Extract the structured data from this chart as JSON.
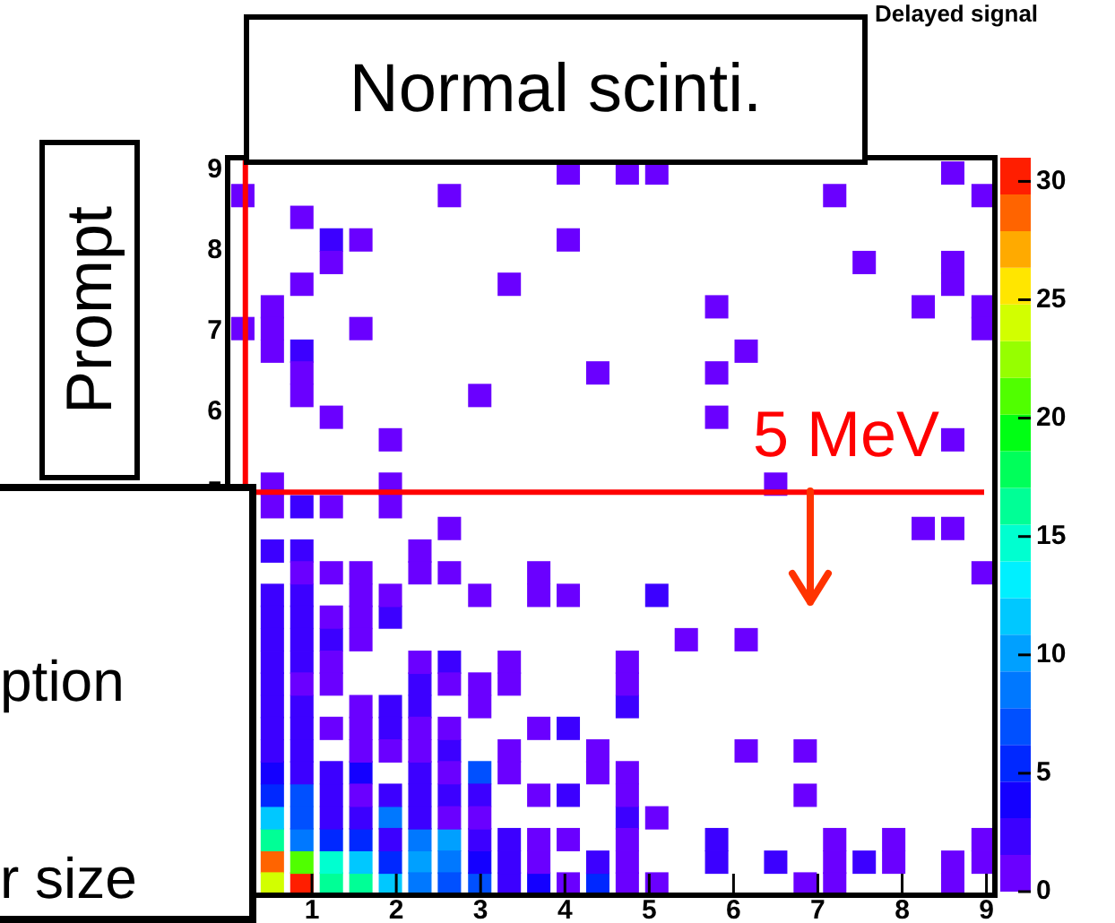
{
  "chart_data": {
    "type": "scatter",
    "title": "Delayed signal",
    "marker": "square",
    "xlim": [
      0,
      9.1
    ],
    "ylim": [
      0,
      9.15
    ],
    "xticks": [
      1,
      2,
      3,
      4,
      5,
      6,
      7,
      8,
      9
    ],
    "yticks": [
      5,
      6,
      7,
      8,
      9
    ],
    "clim": [
      0,
      31
    ],
    "cticks": [
      0,
      5,
      10,
      15,
      20,
      25,
      30
    ],
    "ref_lines": [
      {
        "axis": "y",
        "value": 5,
        "label": "5 MeV",
        "color": "#ff0000"
      },
      {
        "axis": "x",
        "value": 0.21,
        "color": "#ff0000"
      }
    ],
    "annotations": [
      "Normal scinti.",
      "Prompt",
      "ption",
      "r size"
    ],
    "series": [
      {
        "x": [
          4.04,
          4.74,
          5.09,
          8.6,
          0.18,
          2.63,
          7.2,
          8.96,
          0.88,
          1.58,
          4.04,
          1.23,
          7.55,
          8.6,
          0.88,
          3.34,
          8.6,
          0.53,
          5.8,
          8.25,
          8.96,
          0.18,
          0.53,
          1.58,
          8.96,
          0.53,
          6.15,
          0.88,
          4.39,
          5.8,
          0.88,
          2.99,
          1.23,
          5.8,
          1.93,
          8.6,
          0.53,
          1.93,
          6.5,
          0.53,
          1.23,
          1.93,
          2.63,
          8.25,
          8.6,
          2.28,
          0.88,
          1.23,
          1.58,
          2.28,
          2.63,
          3.69,
          8.96,
          1.58,
          1.93,
          2.99,
          3.69,
          4.04,
          1.23,
          1.58,
          1.58,
          5.44,
          6.15,
          1.23,
          2.28,
          3.34,
          4.74,
          0.88,
          1.23,
          2.63,
          2.99,
          3.34,
          4.74,
          1.58,
          2.99,
          1.23,
          1.58,
          2.28,
          2.63,
          3.69,
          1.58,
          1.93,
          2.28,
          3.34,
          4.39,
          6.15,
          6.85,
          2.63,
          3.34,
          4.39,
          4.74,
          1.58,
          3.69,
          4.74,
          6.85,
          2.63,
          2.99,
          5.09,
          3.69,
          4.04,
          4.74,
          7.2,
          7.9,
          8.96,
          3.69,
          4.74,
          7.2,
          7.9,
          8.6,
          8.96,
          4.04,
          4.74,
          5.09,
          6.85,
          7.2,
          8.6
        ],
        "values": [
          8.96,
          8.96,
          8.96,
          8.96,
          8.68,
          8.68,
          8.68,
          8.68,
          8.41,
          8.13,
          8.13,
          7.85,
          7.85,
          7.85,
          7.58,
          7.58,
          7.58,
          7.3,
          7.3,
          7.3,
          7.3,
          7.03,
          7.03,
          7.03,
          7.03,
          6.75,
          6.75,
          6.48,
          6.48,
          6.48,
          6.2,
          6.2,
          5.93,
          5.93,
          5.65,
          5.65,
          5.1,
          5.1,
          5.1,
          4.82,
          4.82,
          4.82,
          4.55,
          4.55,
          4.55,
          4.27,
          4,
          4,
          4,
          4,
          4,
          4,
          4,
          3.72,
          3.72,
          3.72,
          3.72,
          3.72,
          3.45,
          3.45,
          3.17,
          3.17,
          3.17,
          2.89,
          2.89,
          2.89,
          2.89,
          2.62,
          2.62,
          2.62,
          2.62,
          2.62,
          2.62,
          2.34,
          2.34,
          2.07,
          2.07,
          2.07,
          2.07,
          2.07,
          1.79,
          1.79,
          1.79,
          1.79,
          1.79,
          1.79,
          1.79,
          1.52,
          1.52,
          1.52,
          1.52,
          1.24,
          1.24,
          1.24,
          1.24,
          0.96,
          0.96,
          0.96,
          0.69,
          0.69,
          0.69,
          0.69,
          0.69,
          0.69,
          0.41,
          0.41,
          0.41,
          0.41,
          0.41,
          0.41,
          0.14,
          0.14,
          0.14,
          0.14,
          0.14,
          0.14
        ],
        "cvalues": [
          1,
          1,
          1,
          1,
          1,
          1,
          1,
          1,
          1,
          1,
          1,
          1,
          1,
          1,
          1,
          1,
          1,
          1,
          1,
          1,
          1,
          1,
          1,
          1,
          1,
          1,
          1,
          1,
          1,
          1,
          1,
          1,
          1,
          1,
          1,
          1,
          1,
          1,
          1,
          1,
          1,
          1,
          1,
          1,
          1,
          1,
          1,
          1,
          1,
          1,
          1,
          1,
          1,
          1,
          1,
          1,
          1,
          1,
          1,
          1,
          1,
          1,
          1,
          1,
          1,
          1,
          1,
          1,
          1,
          1,
          1,
          1,
          1,
          1,
          1,
          1,
          1,
          1,
          1,
          1,
          1,
          1,
          1,
          1,
          1,
          1,
          1,
          1,
          1,
          1,
          1,
          1,
          1,
          1,
          1,
          1,
          1,
          1,
          1,
          1,
          1,
          1,
          1,
          1,
          1,
          1,
          1,
          1,
          1,
          1,
          1,
          1,
          1,
          1,
          1,
          1
        ]
      },
      {
        "x": [
          1.23,
          0.88,
          0.88,
          0.53,
          0.88,
          0.53,
          0.88,
          5.09,
          0.53,
          0.88,
          1.93,
          0.53,
          0.88,
          1.23,
          0.53,
          0.88,
          2.63,
          0.53,
          2.28,
          0.88,
          1.93,
          2.28,
          4.74,
          0.53,
          0.88,
          1.93,
          4.04,
          0.53,
          2.63,
          1.23,
          2.28,
          1.93,
          2.28,
          2.63,
          2.99,
          4.04,
          2.28,
          4.74,
          5.8,
          3.34,
          4.39,
          5.8,
          6.5,
          7.55
        ],
        "values": [
          8.13,
          6.75,
          4.82,
          4.27,
          4.27,
          3.72,
          3.72,
          3.72,
          3.45,
          3.45,
          3.45,
          3.17,
          3.17,
          3.17,
          2.89,
          2.89,
          2.89,
          2.62,
          2.62,
          2.34,
          2.34,
          2.34,
          2.34,
          2.07,
          2.07,
          2.07,
          2.07,
          1.79,
          1.79,
          1.52,
          1.52,
          1.24,
          1.24,
          1.24,
          1.24,
          1.24,
          0.96,
          0.96,
          0.69,
          0.41,
          0.41,
          0.41,
          0.41,
          0.41
        ],
        "cvalues": [
          2,
          2,
          2,
          2,
          2,
          2,
          2,
          2,
          2,
          2,
          2,
          2,
          2,
          2,
          2,
          2,
          2,
          2,
          2,
          2,
          2,
          2,
          2,
          2,
          2,
          2,
          2,
          2,
          2,
          2,
          2,
          2,
          2,
          2,
          2,
          2,
          2,
          2,
          2,
          2,
          2,
          2,
          2,
          2
        ]
      },
      {
        "x": [
          0.53,
          0.88,
          0.88,
          1.23,
          1.23,
          1.58,
          1.93,
          2.99,
          3.34,
          3.34
        ],
        "values": [
          2.34,
          1.79,
          1.52,
          1.24,
          0.96,
          0.96,
          0.69,
          0.69,
          0.69,
          0.14
        ],
        "cvalues": [
          3,
          3,
          3,
          3,
          3,
          3,
          3,
          3,
          3,
          3
        ]
      },
      {
        "x": [
          0.53,
          1.58,
          2.99,
          3.69
        ],
        "values": [
          1.52,
          1.52,
          0.41,
          0.14
        ],
        "cvalues": [
          4,
          4,
          4,
          4
        ]
      },
      {
        "x": [
          0.53,
          1.23,
          1.58,
          4.39
        ],
        "values": [
          1.24,
          0.69,
          0.69,
          0.14
        ],
        "cvalues": [
          5,
          5,
          5,
          5
        ]
      },
      {
        "x": [
          1.93
        ],
        "values": [
          0.41
        ],
        "cvalues": [
          6
        ]
      },
      {
        "x": [
          2.99,
          0.88,
          0.88,
          2.63,
          2.99
        ],
        "values": [
          1.52,
          1.24,
          0.96,
          0.14,
          0.14
        ],
        "cvalues": [
          7,
          7,
          7,
          7,
          7
        ]
      },
      {
        "x": [
          1.93,
          0.88,
          2.28,
          2.63,
          2.28
        ],
        "values": [
          0.96,
          0.69,
          0.69,
          0.41,
          0.14
        ],
        "cvalues": [
          8,
          8,
          8,
          8,
          8
        ]
      },
      {
        "x": [
          2.63,
          2.28
        ],
        "values": [
          0.69,
          0.41
        ],
        "cvalues": [
          10,
          10
        ]
      },
      {
        "x": [
          0.53,
          1.93
        ],
        "values": [
          0.96,
          0.14
        ],
        "cvalues": [
          11,
          11
        ]
      },
      {
        "x": [
          1.58
        ],
        "values": [
          0.41
        ],
        "cvalues": [
          12
        ]
      },
      {
        "x": [
          1.23
        ],
        "values": [
          0.41
        ],
        "cvalues": [
          14
        ]
      },
      {
        "x": [
          1.23,
          1.58
        ],
        "values": [
          0.14,
          0.14
        ],
        "cvalues": [
          16,
          16
        ]
      },
      {
        "x": [
          0.53
        ],
        "values": [
          0.69
        ],
        "cvalues": [
          17
        ]
      },
      {
        "x": [
          0.88
        ],
        "values": [
          0.41
        ],
        "cvalues": [
          21
        ]
      },
      {
        "x": [
          0.53
        ],
        "values": [
          0.14
        ],
        "cvalues": [
          24
        ]
      },
      {
        "x": [
          0.53
        ],
        "values": [
          0.41
        ],
        "cvalues": [
          29
        ]
      },
      {
        "x": [
          0.88
        ],
        "values": [
          0.14
        ],
        "cvalues": [
          30
        ]
      }
    ]
  }
}
